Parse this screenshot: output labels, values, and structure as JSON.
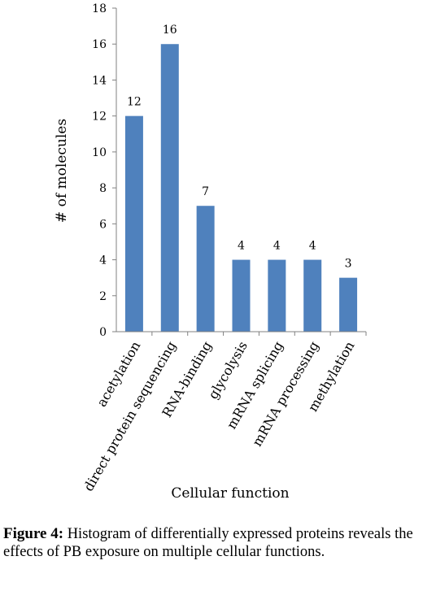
{
  "chart_data": {
    "type": "bar",
    "categories": [
      "acetylation",
      "direct protein sequencing",
      "RNA-binding",
      "glycolysis",
      "mRNA splicing",
      "mRNA processing",
      "methylation"
    ],
    "values": [
      12,
      16,
      7,
      4,
      4,
      4,
      3
    ],
    "data_labels": [
      "12",
      "16",
      "7",
      "4",
      "4",
      "4",
      "3"
    ],
    "title": "",
    "xlabel": "Cellular function",
    "ylabel": "# of molecules",
    "ylim": [
      0,
      18
    ],
    "yticks": [
      "0",
      "2",
      "4",
      "6",
      "8",
      "10",
      "12",
      "14",
      "16",
      "18"
    ],
    "grid": false,
    "bar_color": "#4f81bd"
  },
  "caption": {
    "label": "Figure 4:",
    "text": "Histogram of differentially expressed proteins reveals the effects of PB exposure on multiple cellular functions."
  }
}
